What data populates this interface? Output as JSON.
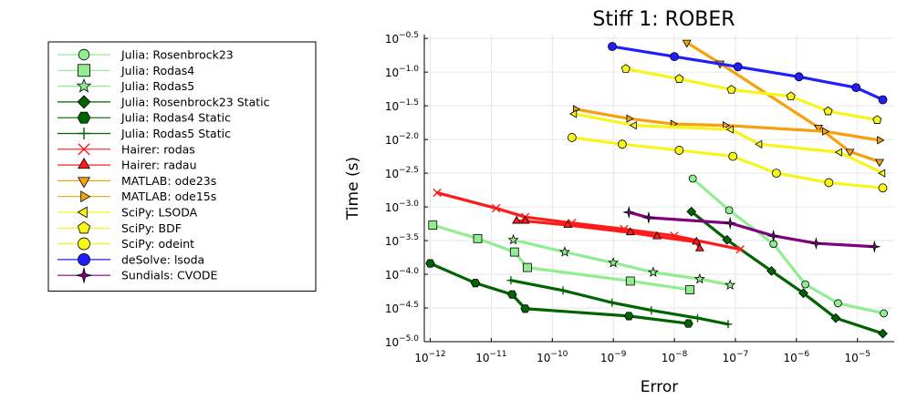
{
  "chart_data": {
    "type": "line",
    "title": "Stiff 1: ROBER",
    "xlabel": "Error",
    "ylabel": "Time (s)",
    "xscale": "log",
    "yscale": "log",
    "xlim": [
      8e-13,
      4e-05
    ],
    "ylim": [
      1e-05,
      0.36
    ],
    "grid": true,
    "legend_position": "outside-left",
    "x_ticks": [
      {
        "value": 1e-12,
        "base": "10",
        "exp": "−12"
      },
      {
        "value": 1e-11,
        "base": "10",
        "exp": "−11"
      },
      {
        "value": 1e-10,
        "base": "10",
        "exp": "−10"
      },
      {
        "value": 1e-09,
        "base": "10",
        "exp": "−9"
      },
      {
        "value": 1e-08,
        "base": "10",
        "exp": "−8"
      },
      {
        "value": 1e-07,
        "base": "10",
        "exp": "−7"
      },
      {
        "value": 1e-06,
        "base": "10",
        "exp": "−6"
      },
      {
        "value": 1e-05,
        "base": "10",
        "exp": "−5"
      }
    ],
    "y_ticks": [
      {
        "value": 0.3162,
        "base": "10",
        "exp": "−0.5"
      },
      {
        "value": 0.1,
        "base": "10",
        "exp": "−1.0"
      },
      {
        "value": 0.03162,
        "base": "10",
        "exp": "−1.5"
      },
      {
        "value": 0.01,
        "base": "10",
        "exp": "−2.0"
      },
      {
        "value": 0.003162,
        "base": "10",
        "exp": "−2.5"
      },
      {
        "value": 0.001,
        "base": "10",
        "exp": "−3.0"
      },
      {
        "value": 0.0003162,
        "base": "10",
        "exp": "−3.5"
      },
      {
        "value": 0.0001,
        "base": "10",
        "exp": "−4.0"
      },
      {
        "value": 3.162e-05,
        "base": "10",
        "exp": "−4.5"
      },
      {
        "value": 1e-05,
        "base": "10",
        "exp": "−5.0"
      }
    ],
    "series": [
      {
        "name": "Julia: Rosenbrock23",
        "color": "#90ee90",
        "marker": "circle",
        "x": [
          2e-08,
          7.9e-08,
          4.2e-07,
          1.4e-06,
          4.8e-06,
          2.7e-05
        ],
        "y": [
          0.00263,
          0.000891,
          0.000282,
          7.08e-05,
          3.72e-05,
          2.63e-05
        ]
      },
      {
        "name": "Julia: Rodas4",
        "color": "#90ee90",
        "marker": "square",
        "x": [
          1.1e-12,
          6e-12,
          2.4e-11,
          3.9e-11,
          1.9e-09,
          1.8e-08
        ],
        "y": [
          0.000537,
          0.000339,
          0.000214,
          0.000126,
          7.94e-05,
          5.89e-05
        ]
      },
      {
        "name": "Julia: Rodas5",
        "color": "#90ee90",
        "marker": "star",
        "x": [
          2.3e-11,
          1.6e-10,
          1e-09,
          4.5e-09,
          2.6e-08,
          8.2e-08
        ],
        "y": [
          0.000324,
          0.000214,
          0.000148,
          0.000107,
          8.51e-05,
          6.92e-05
        ]
      },
      {
        "name": "Julia: Rosenbrock23 Static",
        "color": "#006400",
        "marker": "diamond",
        "x": [
          1.9e-08,
          7.3e-08,
          3.9e-07,
          1.3e-06,
          4.4e-06,
          2.6e-05
        ],
        "y": [
          0.000851,
          0.000324,
          0.000112,
          5.25e-05,
          2.24e-05,
          1.32e-05
        ]
      },
      {
        "name": "Julia: Rodas4 Static",
        "color": "#006400",
        "marker": "hexagon",
        "x": [
          1e-12,
          5.5e-12,
          2.2e-11,
          3.6e-11,
          1.8e-09,
          1.7e-08
        ],
        "y": [
          0.000145,
          7.41e-05,
          5.01e-05,
          3.09e-05,
          2.4e-05,
          1.86e-05
        ]
      },
      {
        "name": "Julia: Rodas5 Static",
        "color": "#006400",
        "marker": "cross",
        "x": [
          2.1e-11,
          1.5e-10,
          9.5e-10,
          4.2e-09,
          2.4e-08,
          7.6e-08
        ],
        "y": [
          8.13e-05,
          5.75e-05,
          3.8e-05,
          2.92e-05,
          2.24e-05,
          1.82e-05
        ]
      },
      {
        "name": "Hairer: rodas",
        "color": "#ff1a1a",
        "marker": "x",
        "x": [
          1.3e-12,
          1.2e-11,
          3.6e-11,
          2.1e-10,
          1.5e-09,
          1e-08,
          1.2e-07
        ],
        "y": [
          0.00162,
          0.000955,
          0.000708,
          0.000575,
          0.000468,
          0.000372,
          0.000234
        ]
      },
      {
        "name": "Hairer: radau",
        "color": "#ff1a1a",
        "marker": "triangle-up",
        "x": [
          2.6e-11,
          3.6e-11,
          1.8e-10,
          1.9e-09,
          5.2e-09,
          2.3e-08,
          2.6e-08
        ],
        "y": [
          0.000617,
          0.000617,
          0.000537,
          0.000417,
          0.000363,
          0.000302,
          0.00024
        ]
      },
      {
        "name": "MATLAB: ode23s",
        "color": "#f5a00d",
        "marker": "triangle-down",
        "x": [
          1.6e-08,
          5.6e-08,
          2.3e-06,
          7.5e-06,
          2.3e-05
        ],
        "y": [
          0.275,
          0.135,
          0.0151,
          0.00661,
          0.00468
        ]
      },
      {
        "name": "MATLAB: ode15s",
        "color": "#f5a00d",
        "marker": "triangle-right",
        "x": [
          2.4e-10,
          1.8e-09,
          9.5e-09,
          6.8e-08,
          2.9e-06,
          2.3e-05
        ],
        "y": [
          0.0282,
          0.0204,
          0.017,
          0.0162,
          0.0132,
          0.00977
        ]
      },
      {
        "name": "SciPy: LSODA",
        "color": "#f7f51a",
        "marker": "triangle-left",
        "x": [
          2.3e-10,
          2.2e-09,
          8.5e-08,
          2.5e-07,
          5.1e-06,
          2.6e-05
        ],
        "y": [
          0.024,
          0.0162,
          0.0141,
          0.00851,
          0.00646,
          0.00316
        ]
      },
      {
        "name": "SciPy: BDF",
        "color": "#f7f51a",
        "marker": "pentagon",
        "x": [
          1.6e-09,
          1.2e-08,
          8.6e-08,
          8.1e-07,
          3.3e-06,
          2.1e-05
        ],
        "y": [
          0.112,
          0.0794,
          0.055,
          0.0437,
          0.0263,
          0.0195
        ]
      },
      {
        "name": "SciPy: odeint",
        "color": "#f7f51a",
        "marker": "circle-large",
        "x": [
          2.1e-10,
          1.4e-09,
          1.2e-08,
          9.1e-08,
          4.7e-07,
          3.4e-06,
          2.6e-05
        ],
        "y": [
          0.0107,
          0.00851,
          0.00692,
          0.00562,
          0.00316,
          0.00229,
          0.00191
        ]
      },
      {
        "name": "deSolve: lsoda",
        "color": "#1e1eff",
        "marker": "circle-large",
        "x": [
          9.6e-10,
          1e-08,
          1.1e-07,
          1.1e-06,
          9.5e-06,
          2.6e-05
        ],
        "y": [
          0.24,
          0.17,
          0.12,
          0.0851,
          0.0589,
          0.0389
        ]
      },
      {
        "name": "Sundials: CVODE",
        "color": "#800080",
        "marker": "star4",
        "x": [
          1.8e-09,
          3.8e-09,
          8.2e-08,
          4.2e-07,
          2.1e-06,
          1.9e-05
        ],
        "y": [
          0.000832,
          0.000692,
          0.000575,
          0.000372,
          0.000288,
          0.000257
        ]
      }
    ]
  }
}
